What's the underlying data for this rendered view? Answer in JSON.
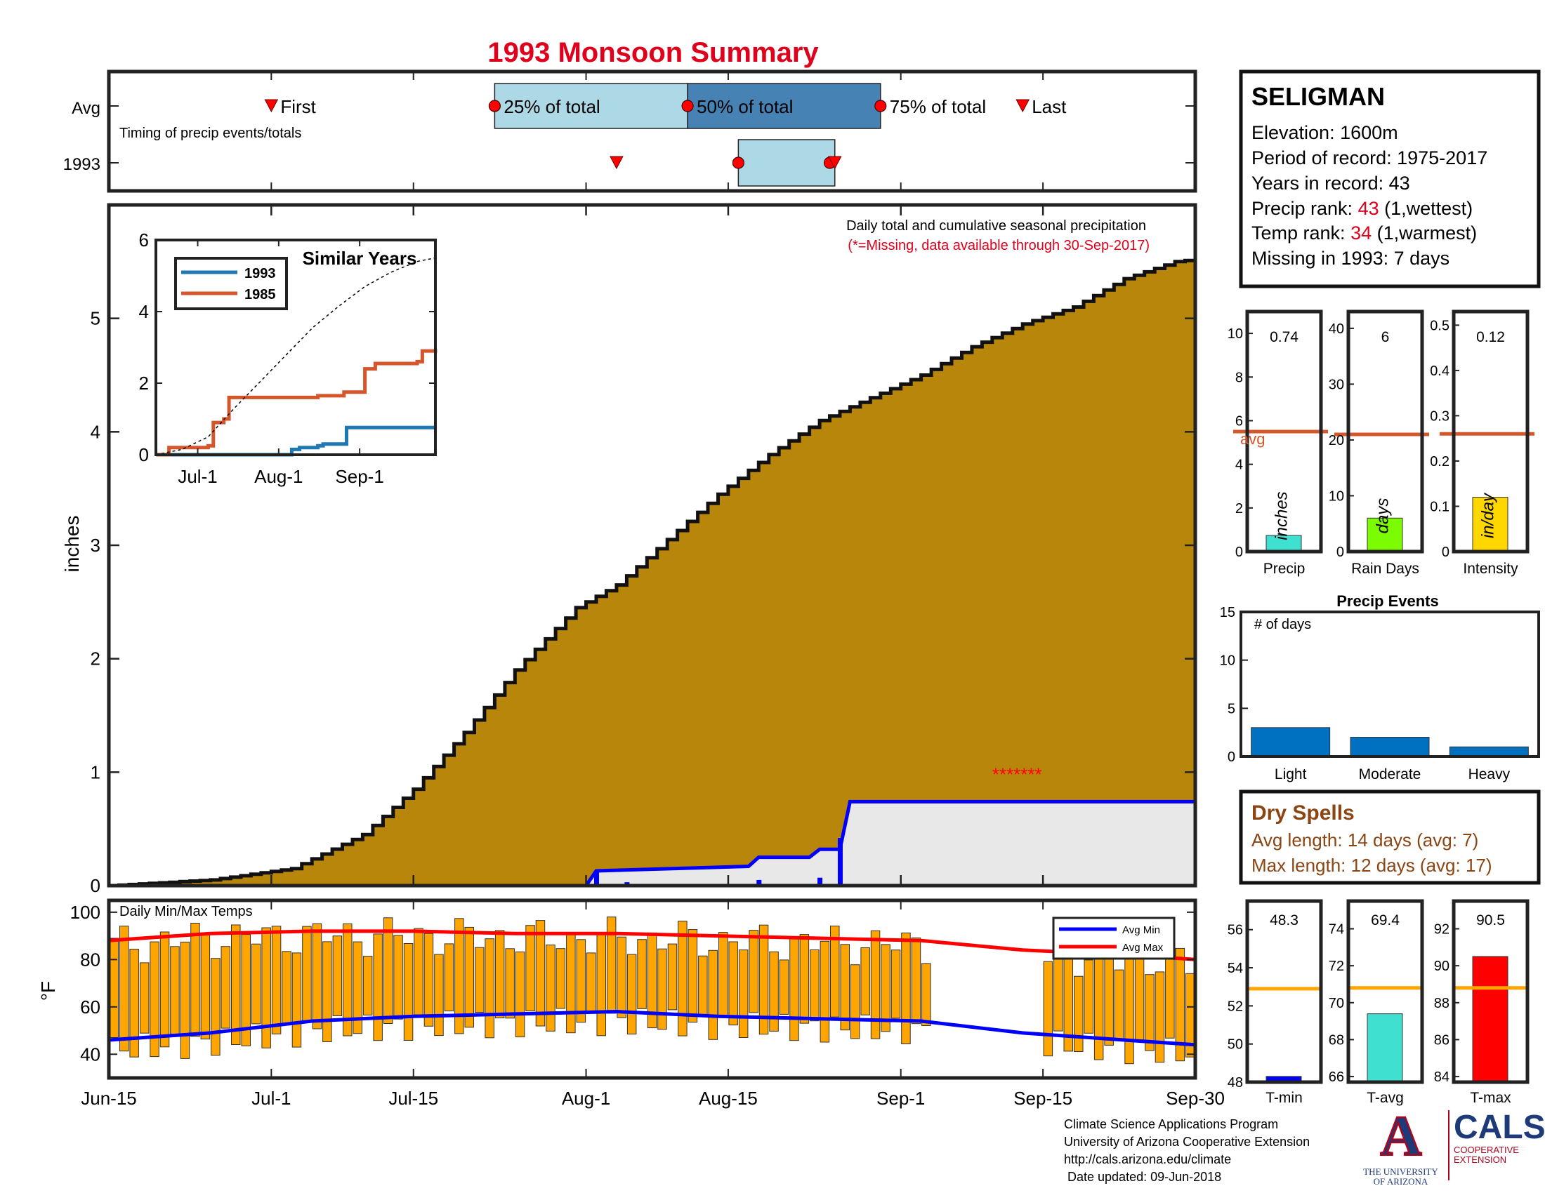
{
  "title": "1993 Monsoon Summary",
  "colors": {
    "title": "#e0001b",
    "cumfill": "#b8860b",
    "yearline": "#0000ff",
    "yearfill": "#e8e8e8",
    "bars": "#ffa500",
    "avgmin": "#0000ff",
    "avgmax": "#ff0000",
    "orange": "#d4562a",
    "blue_series": "#1f77b4",
    "light_box": "#add8e6",
    "dark_box": "#4682b4",
    "marker": "#ff0000",
    "dry_text": "#8b4513",
    "precip_bar": "#40e0d0",
    "rain_bar": "#7cfc00",
    "intensity_bar": "#ffd700",
    "event_bar": "#0070c0",
    "tmin_bar": "#0000ff",
    "tavg_bar": "#40e0d0",
    "tmax_bar": "#ff0000",
    "tref_line": "#ffa500"
  },
  "timing": {
    "row_labels": [
      "Avg",
      "1993"
    ],
    "caption": "Timing of precip events/totals",
    "labels": {
      "first": "First",
      "q25": "25% of total",
      "q50": "50% of total",
      "q75": "75% of total",
      "last": "Last"
    },
    "avg": {
      "first": 16,
      "q25": 38,
      "q50": 57,
      "q75": 76,
      "last": 90
    },
    "y1993": {
      "first": 50,
      "q25": 62,
      "q50": 71,
      "q75": 71.5
    }
  },
  "main": {
    "header1": "Daily total and cumulative seasonal precipitation",
    "header2": "(*=Missing, data available through 30-Sep-2017)",
    "ylabel": "inches",
    "xticks": [
      "Jun-15",
      "Jul-1",
      "Jul-15",
      "Aug-1",
      "Aug-15",
      "Sep-1",
      "Sep-15",
      "Sep-30"
    ],
    "xtick_days": [
      0,
      16,
      30,
      47,
      61,
      78,
      92,
      107
    ],
    "yticks": [
      "0",
      "1",
      "2",
      "3",
      "4",
      "5"
    ],
    "ylim": [
      0,
      6
    ],
    "missing_marks": "*******",
    "missing_days": [
      87,
      88,
      89,
      90,
      91,
      92,
      93
    ]
  },
  "inset": {
    "title": "Similar Years",
    "legend": [
      "1993",
      "1985"
    ],
    "xticks": [
      "Jul-1",
      "Aug-1",
      "Sep-1"
    ],
    "yticks": [
      "0",
      "2",
      "4",
      "6"
    ]
  },
  "station": {
    "name": "SELIGMAN",
    "elevation": "Elevation: 1600m",
    "period": "Period of record: 1975-2017",
    "years": "Years in record: 43",
    "precip_rank_label": "Precip rank: ",
    "precip_rank_value": "43",
    "precip_rank_note": " (1,wettest)",
    "temp_rank_label": "Temp rank: ",
    "temp_rank_value": "34",
    "temp_rank_note": " (1,warmest)",
    "missing": "Missing in 1993: 7 days"
  },
  "mini": {
    "precip": {
      "value": "0.74",
      "unit": "inches",
      "label": "Precip",
      "yticks": [
        "0",
        "2",
        "4",
        "6",
        "8",
        "10"
      ],
      "ymax": 11,
      "v": 0.74,
      "avg": 5.5,
      "avg_label": "avg"
    },
    "rain": {
      "value": "6",
      "unit": "days",
      "label": "Rain Days",
      "yticks": [
        "0",
        "10",
        "20",
        "30",
        "40"
      ],
      "ymax": 43,
      "v": 6,
      "avg": 21
    },
    "intensity": {
      "value": "0.12",
      "unit": "in/day",
      "label": "Intensity",
      "yticks": [
        "0",
        "0.1",
        "0.2",
        "0.3",
        "0.4",
        "0.5"
      ],
      "ymax": 0.53,
      "v": 0.12,
      "avg": 0.26
    }
  },
  "events": {
    "title": "Precip Events",
    "ylabel": "# of days",
    "yticks": [
      "0",
      "5",
      "10",
      "15"
    ],
    "ymax": 15,
    "categories": [
      "Light",
      "Moderate",
      "Heavy"
    ],
    "values": [
      3,
      2,
      1
    ]
  },
  "dry": {
    "title": "Dry Spells",
    "avg_length": "Avg length: 14 days (avg: 7)",
    "max_length": "Max length: 12 days (avg: 17)"
  },
  "temps": {
    "label": "Daily Min/Max Temps",
    "ylabel": "°F",
    "yticks": [
      "40",
      "60",
      "80",
      "100"
    ],
    "legend": [
      "Avg Min",
      "Avg Max"
    ]
  },
  "tstats": {
    "tmin": {
      "value": "48.3",
      "label": "T-min",
      "yticks": [
        "48",
        "50",
        "52",
        "54",
        "56"
      ],
      "ymin": 48,
      "ymax": 57.5,
      "v": 48.3,
      "ref": 52.9
    },
    "tavg": {
      "value": "69.4",
      "label": "T-avg",
      "yticks": [
        "66",
        "68",
        "70",
        "72",
        "74"
      ],
      "ymin": 65.7,
      "ymax": 75.5,
      "v": 69.4,
      "ref": 70.8
    },
    "tmax": {
      "value": "90.5",
      "label": "T-max",
      "yticks": [
        "84",
        "86",
        "88",
        "90",
        "92"
      ],
      "ymin": 83.7,
      "ymax": 93.5,
      "v": 90.5,
      "ref": 88.8
    }
  },
  "footer": {
    "line1": "Climate Science Applications Program",
    "line2": "University of Arizona Cooperative Extension",
    "line3": "http://cals.arizona.edu/climate",
    "line4": " Date updated: 09-Jun-2018"
  },
  "logos": {
    "ua_mark": "A",
    "ua_line1": "THE UNIVERSITY",
    "ua_line2": "OF ARIZONA",
    "cals": "CALS",
    "cals_line1": "COOPERATIVE",
    "cals_line2": "EXTENSION"
  },
  "chart_data": [
    {
      "type": "area",
      "title": "Daily total and cumulative seasonal precipitation",
      "ylabel": "inches",
      "ylim": [
        0,
        6
      ],
      "series": [
        {
          "name": "",
          "x": [
            0,
            10,
            18,
            25,
            30,
            35,
            40,
            46,
            50,
            55,
            60,
            65,
            70,
            75,
            80,
            85,
            90,
            95,
            100,
            105,
            107
          ],
          "values": [
            0,
            0.05,
            0.15,
            0.45,
            0.85,
            1.35,
            1.9,
            2.45,
            2.65,
            3.05,
            3.45,
            3.8,
            4.1,
            4.3,
            4.5,
            4.75,
            4.95,
            5.1,
            5.35,
            5.5,
            5.52
          ]
        },
        {
          "name": "1993",
          "x": [
            0,
            47,
            48,
            63,
            64,
            69,
            70,
            72,
            73,
            107
          ],
          "values": [
            0,
            0,
            0.13,
            0.17,
            0.25,
            0.25,
            0.32,
            0.32,
            0.74,
            0.74
          ]
        }
      ]
    },
    {
      "type": "line",
      "title": "Similar Years",
      "ylim": [
        0,
        6
      ],
      "series": [
        {
          "name": "1993",
          "x": [
            0,
            47,
            52,
            55,
            62,
            64,
            70,
            73,
            107
          ],
          "values": [
            0,
            0,
            0.15,
            0.2,
            0.25,
            0.3,
            0.3,
            0.76,
            0.76
          ]
        },
        {
          "name": "1985",
          "x": [
            0,
            5,
            20,
            22,
            26,
            28,
            60,
            62,
            70,
            72,
            80,
            84,
            100,
            102,
            107
          ],
          "values": [
            0,
            0.2,
            0.25,
            0.9,
            1,
            1.6,
            1.6,
            1.65,
            1.65,
            1.75,
            2.4,
            2.55,
            2.6,
            2.9,
            2.95
          ]
        },
        {
          "name": "",
          "x": [
            0,
            10,
            20,
            30,
            40,
            50,
            60,
            70,
            80,
            90,
            100,
            107
          ],
          "values": [
            0,
            0.15,
            0.5,
            1.3,
            2.05,
            2.8,
            3.55,
            4.15,
            4.7,
            5.1,
            5.4,
            5.5
          ]
        }
      ]
    },
    {
      "type": "bar",
      "title": "Daily Min/Max Temps",
      "ylabel": "°F",
      "ylim": [
        30,
        105
      ],
      "series": [
        {
          "name": "Avg Min",
          "x": [
            0,
            10,
            20,
            30,
            40,
            50,
            60,
            70,
            80,
            90,
            100,
            107
          ],
          "values": [
            46,
            49,
            54,
            56,
            57,
            58,
            56,
            55,
            54,
            49,
            46,
            44
          ]
        },
        {
          "name": "Avg Max",
          "x": [
            0,
            10,
            20,
            30,
            40,
            50,
            60,
            70,
            80,
            90,
            100,
            107
          ],
          "values": [
            88,
            91,
            92,
            92,
            91,
            91,
            90,
            89,
            88,
            84,
            82,
            80
          ]
        }
      ]
    },
    {
      "type": "bar",
      "categories": [
        "Precip",
        "Rain Days",
        "Intensity"
      ],
      "values": [
        0.74,
        6,
        0.12
      ]
    },
    {
      "type": "bar",
      "title": "Precip Events",
      "ylabel": "# of days",
      "categories": [
        "Light",
        "Moderate",
        "Heavy"
      ],
      "values": [
        3,
        2,
        1
      ],
      "ylim": [
        0,
        15
      ]
    },
    {
      "type": "bar",
      "categories": [
        "T-min",
        "T-avg",
        "T-max"
      ],
      "values": [
        48.3,
        69.4,
        90.5
      ]
    }
  ]
}
